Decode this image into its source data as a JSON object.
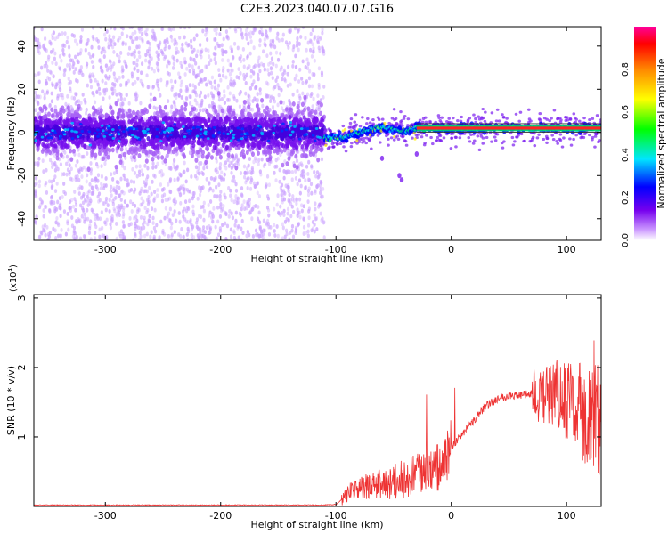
{
  "title": "C2E3.2023.040.07.07.G16",
  "chart_data": [
    {
      "type": "heatmap",
      "xlabel": "Height of straight line (km)",
      "ylabel": "Frequency (Hz)",
      "xlim": [
        -362,
        130
      ],
      "ylim": [
        -50,
        49
      ],
      "xticks": [
        "-300",
        "-200",
        "-100",
        "0",
        "100"
      ],
      "xtick_values": [
        -300,
        -200,
        -100,
        0,
        100
      ],
      "yticks": [
        "-40",
        "-20",
        "0",
        "20",
        "40"
      ],
      "ytick_values": [
        -40,
        -20,
        0,
        20,
        40
      ],
      "colorbar": {
        "label": "Normalized spectral amplitude",
        "range": [
          0,
          1
        ],
        "ticks": [
          "0.0",
          "0.2",
          "0.4",
          "0.6",
          "0.8"
        ],
        "tick_values": [
          0,
          0.2,
          0.4,
          0.6,
          0.8
        ]
      },
      "features": {
        "noise_region_x": [
          -362,
          -110
        ],
        "trace_region_x": [
          -110,
          130
        ],
        "steady_carrier_x": [
          -30,
          130
        ],
        "steady_carrier_freq": 2
      },
      "grid": false
    },
    {
      "type": "line",
      "xlabel": "Height of straight line (km)",
      "ylabel": "SNR (10 * v/v)",
      "y_multiplier": "(x10",
      "y_multiplier_exp": "4",
      "y_multiplier_close": ")",
      "xlim": [
        -362,
        130
      ],
      "ylim": [
        0,
        3.05
      ],
      "xticks": [
        "-300",
        "-200",
        "-100",
        "0",
        "100"
      ],
      "xtick_values": [
        -300,
        -200,
        -100,
        0,
        100
      ],
      "yticks": [
        "1",
        "2",
        "3"
      ],
      "ytick_values": [
        1,
        2,
        3
      ],
      "color": "#ee3333",
      "series": [
        {
          "x": [
            -362,
            -300,
            -250,
            -200,
            -150,
            -110,
            -100,
            -95,
            -90,
            -80,
            -70,
            -60,
            -50,
            -40,
            -30,
            -20,
            -10,
            0,
            10,
            20,
            30,
            40,
            50,
            60,
            70,
            80,
            90,
            100,
            110,
            120,
            130
          ],
          "values": [
            0.02,
            0.02,
            0.02,
            0.02,
            0.02,
            0.02,
            0.03,
            0.1,
            0.2,
            0.25,
            0.3,
            0.32,
            0.35,
            0.4,
            0.45,
            0.5,
            0.55,
            0.85,
            1.05,
            1.25,
            1.45,
            1.55,
            1.6,
            1.6,
            1.62,
            1.6,
            1.55,
            1.5,
            1.4,
            1.3,
            1.2
          ]
        }
      ],
      "grid": false
    }
  ]
}
